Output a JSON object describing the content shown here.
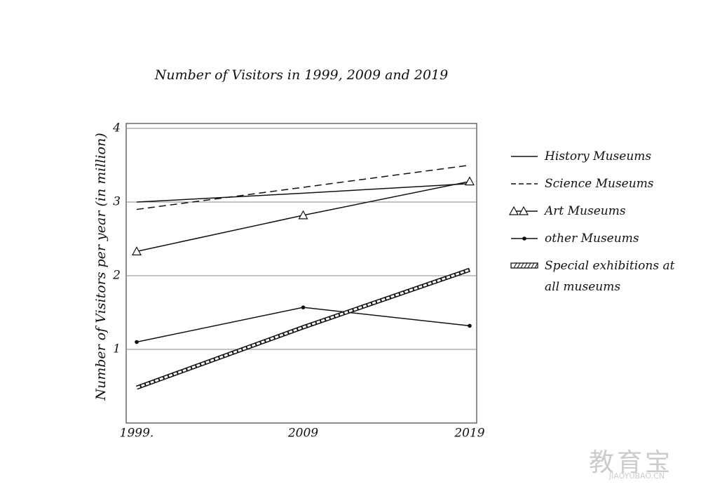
{
  "chart_data": {
    "type": "line",
    "title": "Number of Visitors in 1999, 2009 and 2019",
    "y_label": "Number of Visitors per year (in million)",
    "categories": [
      "1999.",
      "2009",
      "2019"
    ],
    "ylim": [
      0,
      4
    ],
    "yticks": [
      1,
      2,
      3,
      4
    ],
    "grid": true,
    "legend": "right",
    "series": [
      {
        "name": "History Museums",
        "color": "#111111",
        "style": "solid",
        "values": [
          3.0,
          3.12,
          3.25
        ]
      },
      {
        "name": "Science Museums",
        "color": "#111111",
        "style": "dashed",
        "values": [
          2.9,
          3.2,
          3.5
        ]
      },
      {
        "name": "Art Museums",
        "color": "#111111",
        "style": "triangle",
        "values": [
          2.33,
          2.82,
          3.28
        ]
      },
      {
        "name": "other Museums",
        "color": "#111111",
        "style": "dot",
        "values": [
          1.1,
          1.57,
          1.32
        ]
      },
      {
        "name": "Special exhibitions at all museums",
        "color": "#111111",
        "style": "hatched",
        "values": [
          0.48,
          1.3,
          2.08
        ]
      }
    ]
  },
  "watermark": {
    "text": "教育宝",
    "url": "JIAOYUBAO.CN"
  }
}
